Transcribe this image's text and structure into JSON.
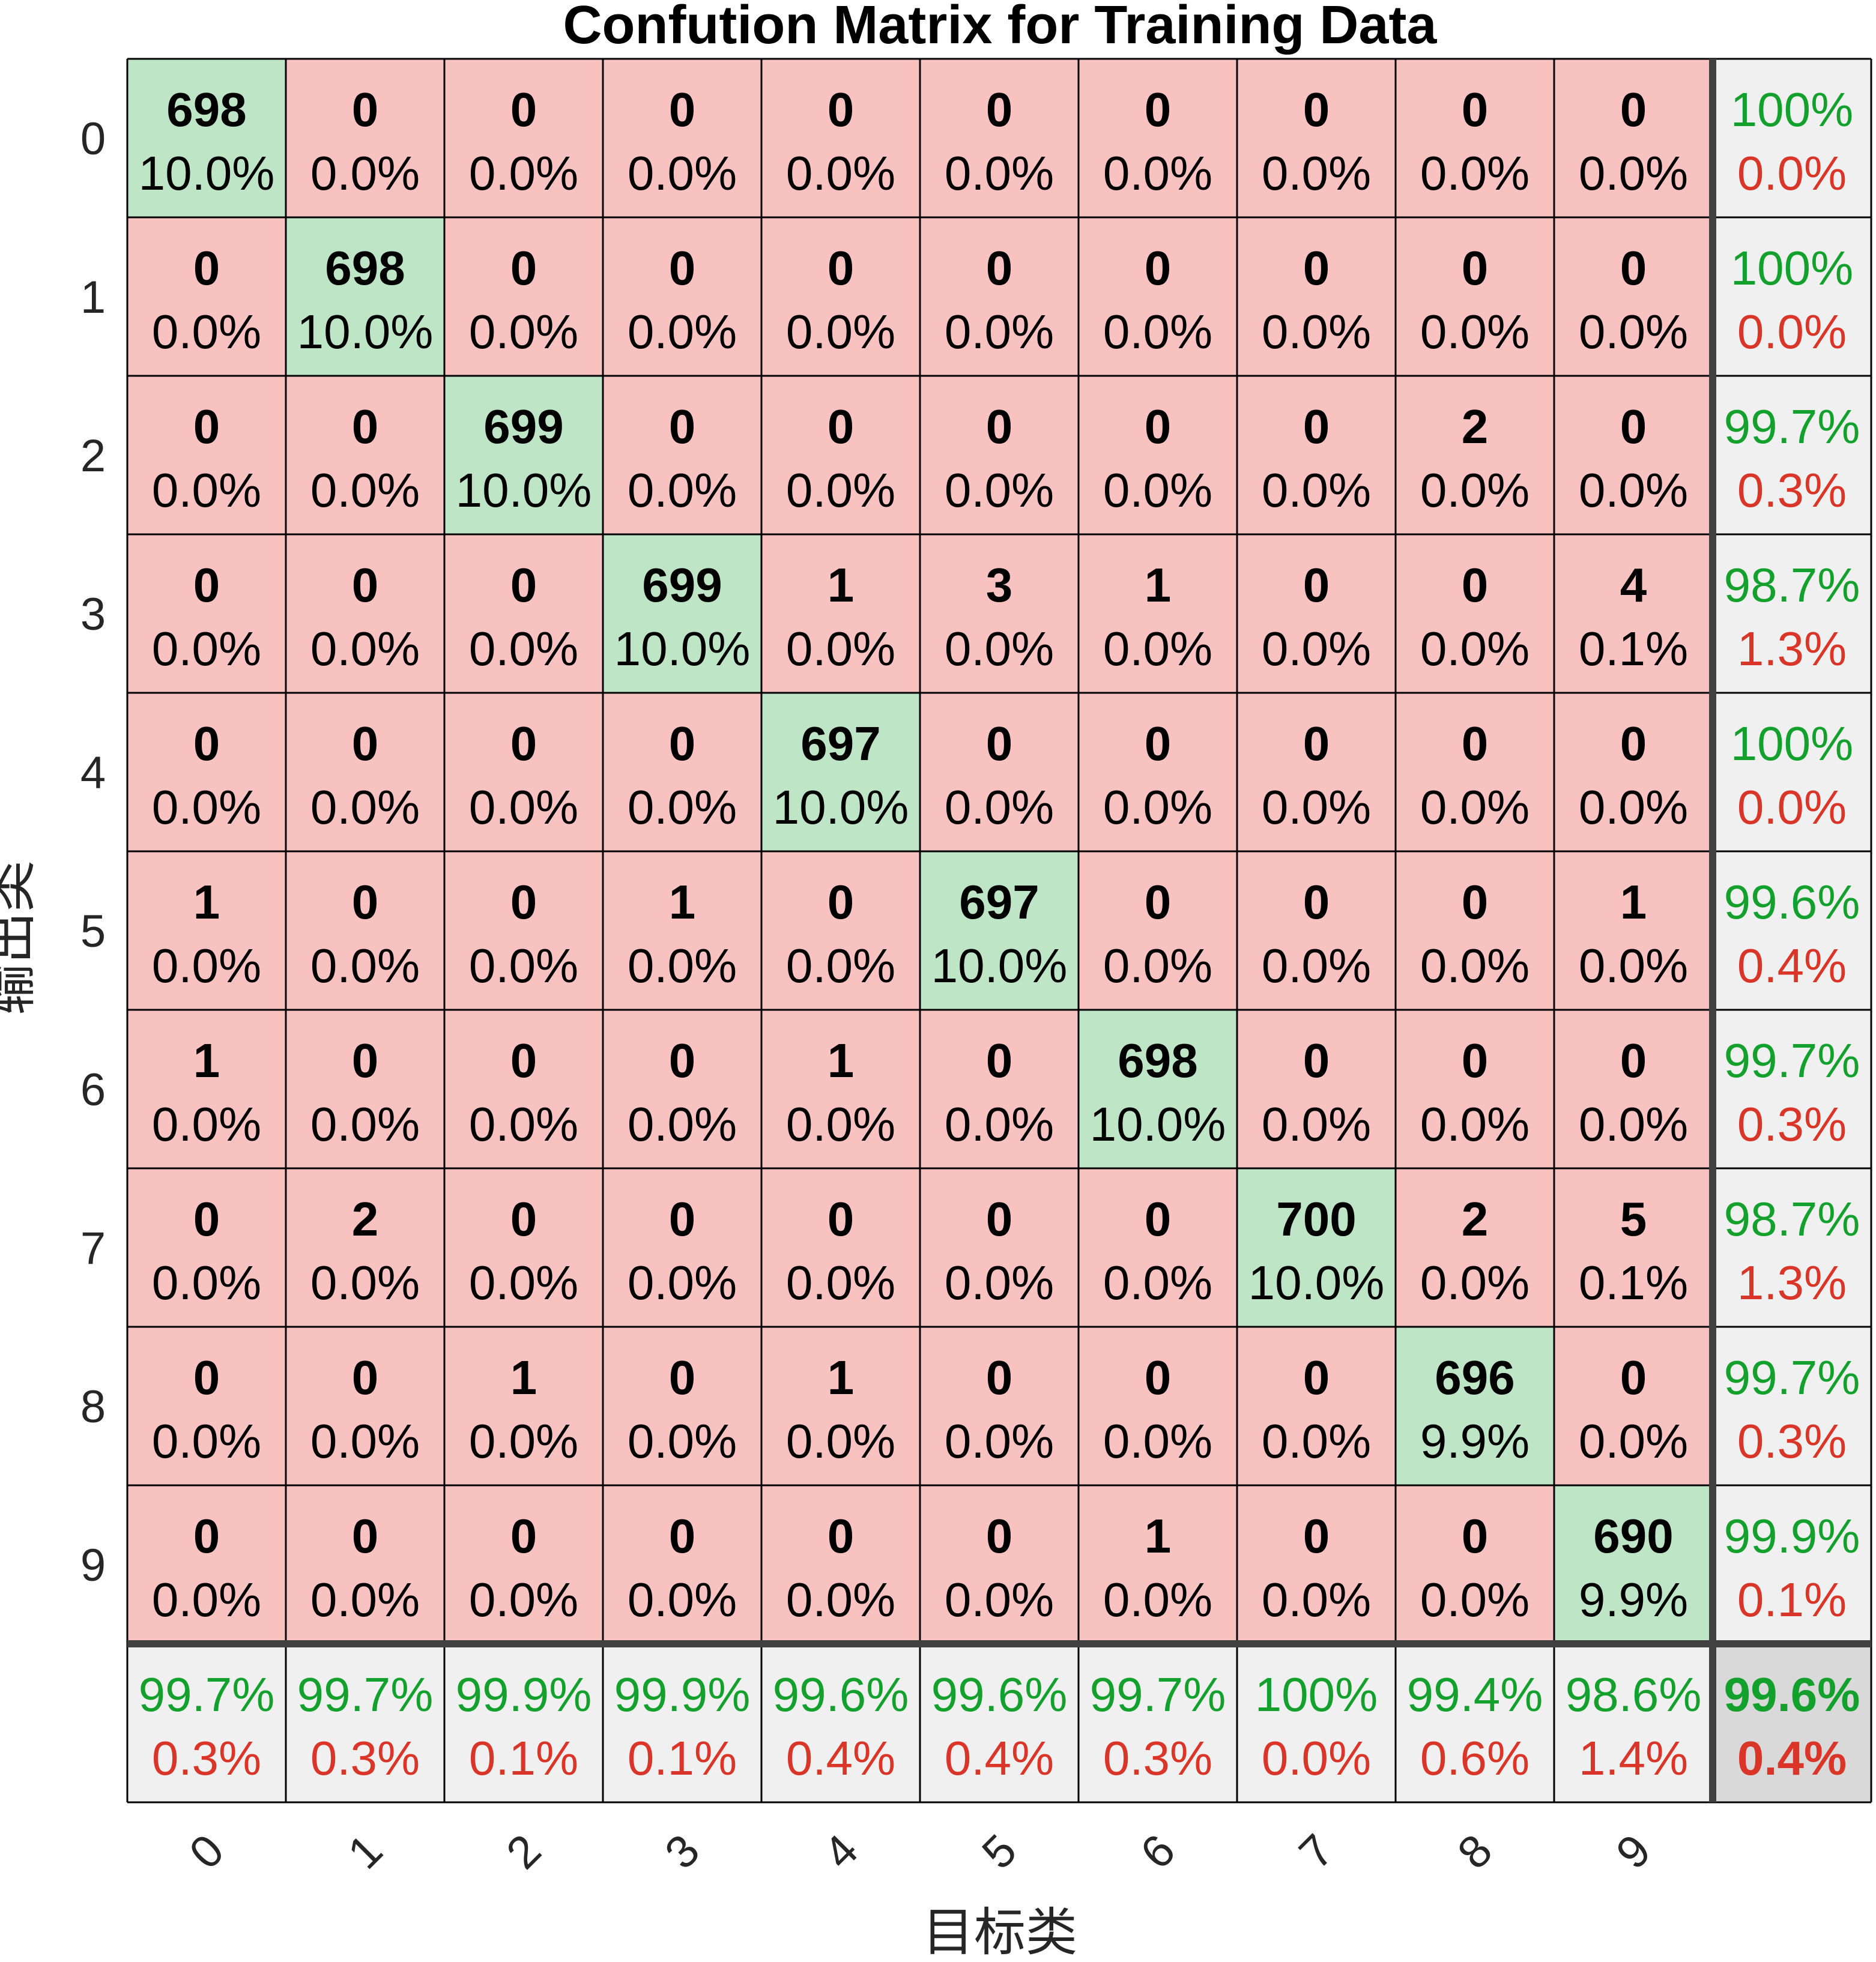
{
  "chart_data": {
    "type": "heatmap",
    "title": "Confution Matrix for Training Data",
    "xlabel": "目标类",
    "ylabel": "输出类",
    "x_tick_labels": [
      "0",
      "1",
      "2",
      "3",
      "4",
      "5",
      "6",
      "7",
      "8",
      "9"
    ],
    "y_tick_labels": [
      "0",
      "1",
      "2",
      "3",
      "4",
      "5",
      "6",
      "7",
      "8",
      "9"
    ],
    "counts": [
      [
        698,
        0,
        0,
        0,
        0,
        0,
        0,
        0,
        0,
        0
      ],
      [
        0,
        698,
        0,
        0,
        0,
        0,
        0,
        0,
        0,
        0
      ],
      [
        0,
        0,
        699,
        0,
        0,
        0,
        0,
        0,
        2,
        0
      ],
      [
        0,
        0,
        0,
        699,
        1,
        3,
        1,
        0,
        0,
        4
      ],
      [
        0,
        0,
        0,
        0,
        697,
        0,
        0,
        0,
        0,
        0
      ],
      [
        1,
        0,
        0,
        1,
        0,
        697,
        0,
        0,
        0,
        1
      ],
      [
        1,
        0,
        0,
        0,
        1,
        0,
        698,
        0,
        0,
        0
      ],
      [
        0,
        2,
        0,
        0,
        0,
        0,
        0,
        700,
        2,
        5
      ],
      [
        0,
        0,
        1,
        0,
        1,
        0,
        0,
        0,
        696,
        0
      ],
      [
        0,
        0,
        0,
        0,
        0,
        0,
        1,
        0,
        0,
        690
      ]
    ],
    "cell_percents": [
      [
        "10.0%",
        "0.0%",
        "0.0%",
        "0.0%",
        "0.0%",
        "0.0%",
        "0.0%",
        "0.0%",
        "0.0%",
        "0.0%"
      ],
      [
        "0.0%",
        "10.0%",
        "0.0%",
        "0.0%",
        "0.0%",
        "0.0%",
        "0.0%",
        "0.0%",
        "0.0%",
        "0.0%"
      ],
      [
        "0.0%",
        "0.0%",
        "10.0%",
        "0.0%",
        "0.0%",
        "0.0%",
        "0.0%",
        "0.0%",
        "0.0%",
        "0.0%"
      ],
      [
        "0.0%",
        "0.0%",
        "0.0%",
        "10.0%",
        "0.0%",
        "0.0%",
        "0.0%",
        "0.0%",
        "0.0%",
        "0.1%"
      ],
      [
        "0.0%",
        "0.0%",
        "0.0%",
        "0.0%",
        "10.0%",
        "0.0%",
        "0.0%",
        "0.0%",
        "0.0%",
        "0.0%"
      ],
      [
        "0.0%",
        "0.0%",
        "0.0%",
        "0.0%",
        "0.0%",
        "10.0%",
        "0.0%",
        "0.0%",
        "0.0%",
        "0.0%"
      ],
      [
        "0.0%",
        "0.0%",
        "0.0%",
        "0.0%",
        "0.0%",
        "0.0%",
        "10.0%",
        "0.0%",
        "0.0%",
        "0.0%"
      ],
      [
        "0.0%",
        "0.0%",
        "0.0%",
        "0.0%",
        "0.0%",
        "0.0%",
        "0.0%",
        "10.0%",
        "0.0%",
        "0.1%"
      ],
      [
        "0.0%",
        "0.0%",
        "0.0%",
        "0.0%",
        "0.0%",
        "0.0%",
        "0.0%",
        "0.0%",
        "9.9%",
        "0.0%"
      ],
      [
        "0.0%",
        "0.0%",
        "0.0%",
        "0.0%",
        "0.0%",
        "0.0%",
        "0.0%",
        "0.0%",
        "0.0%",
        "9.9%"
      ]
    ],
    "row_summary": [
      {
        "correct": "100%",
        "error": "0.0%"
      },
      {
        "correct": "100%",
        "error": "0.0%"
      },
      {
        "correct": "99.7%",
        "error": "0.3%"
      },
      {
        "correct": "98.7%",
        "error": "1.3%"
      },
      {
        "correct": "100%",
        "error": "0.0%"
      },
      {
        "correct": "99.6%",
        "error": "0.4%"
      },
      {
        "correct": "99.7%",
        "error": "0.3%"
      },
      {
        "correct": "98.7%",
        "error": "1.3%"
      },
      {
        "correct": "99.7%",
        "error": "0.3%"
      },
      {
        "correct": "99.9%",
        "error": "0.1%"
      }
    ],
    "column_summary": [
      {
        "correct": "99.7%",
        "error": "0.3%"
      },
      {
        "correct": "99.7%",
        "error": "0.3%"
      },
      {
        "correct": "99.9%",
        "error": "0.1%"
      },
      {
        "correct": "99.9%",
        "error": "0.1%"
      },
      {
        "correct": "99.6%",
        "error": "0.4%"
      },
      {
        "correct": "99.6%",
        "error": "0.4%"
      },
      {
        "correct": "99.7%",
        "error": "0.3%"
      },
      {
        "correct": "100%",
        "error": "0.0%"
      },
      {
        "correct": "99.4%",
        "error": "0.6%"
      },
      {
        "correct": "98.6%",
        "error": "1.4%"
      }
    ],
    "overall": {
      "correct": "99.6%",
      "error": "0.4%"
    },
    "colors": {
      "diagonal": "#bfe5c7",
      "off_diagonal": "#f7c2bf",
      "summary": "#f0f0f0",
      "overall": "#d9d9d9",
      "correct_text": "#14a02c",
      "error_text": "#d93528"
    }
  }
}
